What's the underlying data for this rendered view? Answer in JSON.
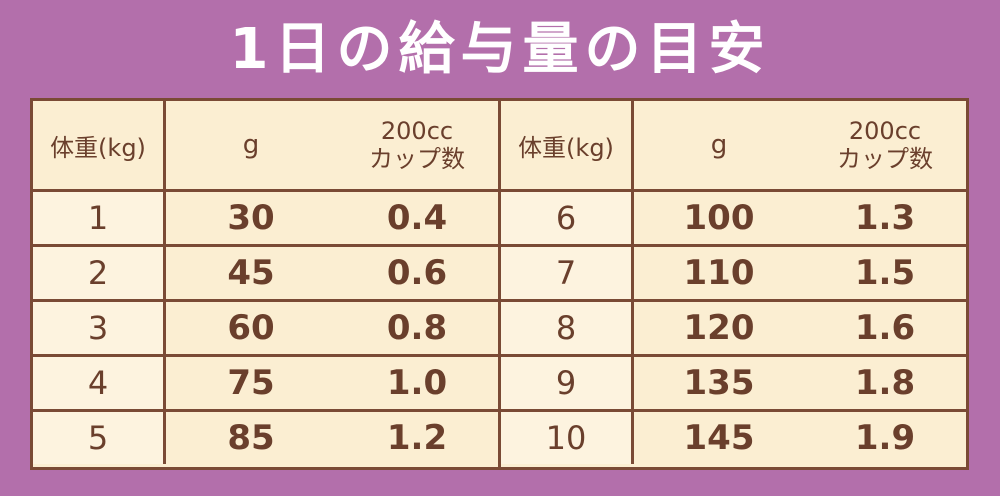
{
  "title": "1日の給与量の目安",
  "header": {
    "weight": "体重(kg)",
    "grams": "g",
    "cups_line1": "200cc",
    "cups_line2": "カップ数"
  },
  "left": [
    {
      "weight": "1",
      "grams": "30",
      "cups": "0.4"
    },
    {
      "weight": "2",
      "grams": "45",
      "cups": "0.6"
    },
    {
      "weight": "3",
      "grams": "60",
      "cups": "0.8"
    },
    {
      "weight": "4",
      "grams": "75",
      "cups": "1.0"
    },
    {
      "weight": "5",
      "grams": "85",
      "cups": "1.2"
    }
  ],
  "right": [
    {
      "weight": "6",
      "grams": "100",
      "cups": "1.3"
    },
    {
      "weight": "7",
      "grams": "110",
      "cups": "1.5"
    },
    {
      "weight": "8",
      "grams": "120",
      "cups": "1.6"
    },
    {
      "weight": "9",
      "grams": "135",
      "cups": "1.8"
    },
    {
      "weight": "10",
      "grams": "145",
      "cups": "1.9"
    }
  ],
  "colors": {
    "background": "#b36fab",
    "table_fill": "#fbeed2",
    "border": "#7a4a35",
    "text": "#6a3f2c",
    "title_text": "#ffffff"
  }
}
